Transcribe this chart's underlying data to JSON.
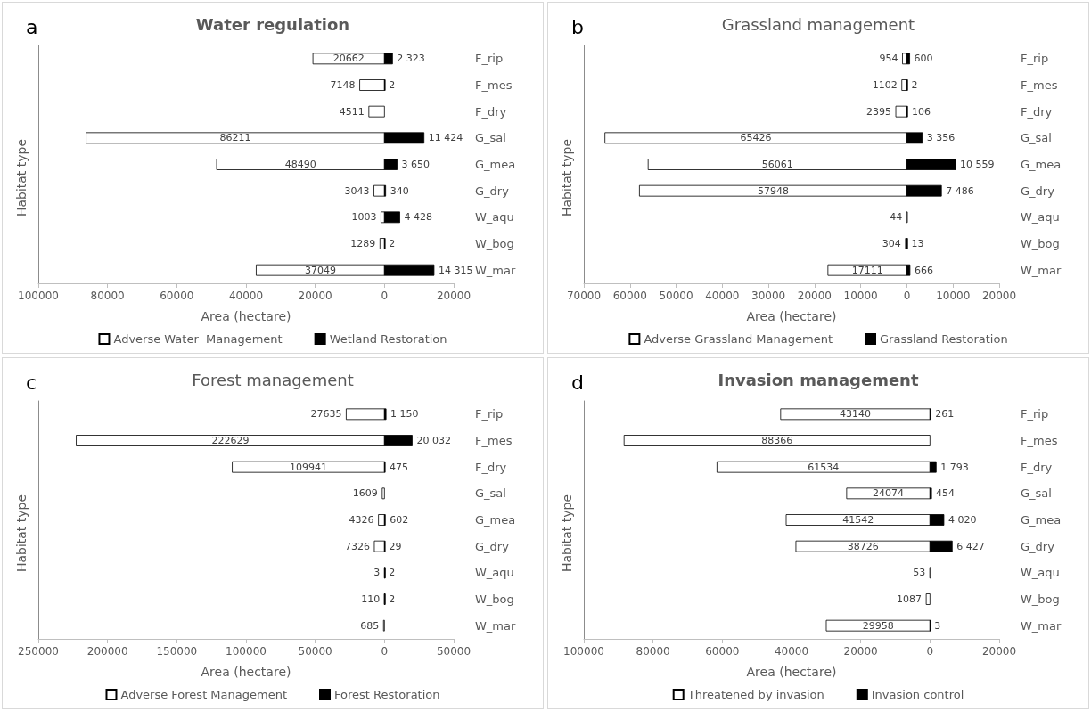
{
  "chart_data": [
    {
      "type": "bar",
      "orientation": "horizontal",
      "title": "Water regulation",
      "annotations": [
        "a"
      ],
      "xlabel": "Area (hectare)",
      "ylabel": "Habitat type",
      "legend": "bottom",
      "grid": false,
      "categories": [
        "F_rip",
        "F_mes",
        "F_dry",
        "G_sal",
        "G_mea",
        "G_dry",
        "W_aqu",
        "W_bog",
        "W_mar"
      ],
      "xlim": [
        -100000,
        20000
      ],
      "xticks": [
        {
          "value": -100000,
          "label": "100000"
        },
        {
          "value": -80000,
          "label": "80000"
        },
        {
          "value": -60000,
          "label": "60000"
        },
        {
          "value": -40000,
          "label": "40000"
        },
        {
          "value": -20000,
          "label": "20000"
        },
        0,
        20000
      ],
      "series": [
        {
          "name": "Adverse Water  Management",
          "color": "#ffffff",
          "values": [
            20662,
            7148,
            4511,
            86211,
            48490,
            3043,
            1003,
            1289,
            37049
          ],
          "base": [
            -20662,
            -7148,
            -4511,
            -86211,
            -48490,
            -3043,
            -1003,
            -1289,
            -37049
          ],
          "value_labels": [
            "20662",
            "7148",
            "4511",
            "86211",
            "48490",
            "3043",
            "1003",
            "1289",
            "37049"
          ]
        },
        {
          "name": "Wetland Restoration",
          "color": "#000000",
          "values": [
            2323,
            2,
            null,
            11424,
            3650,
            340,
            4428,
            2,
            14315
          ],
          "value_labels": [
            "2 323",
            "2",
            null,
            "11 424",
            "3 650",
            "340",
            "4 428",
            "2",
            "14 315"
          ]
        }
      ]
    },
    {
      "type": "bar",
      "orientation": "horizontal",
      "title": "Grassland management",
      "annotations": [
        "b"
      ],
      "xlabel": "Area (hectare)",
      "ylabel": "Habitat type",
      "legend": "bottom",
      "grid": false,
      "categories": [
        "F_rip",
        "F_mes",
        "F_dry",
        "G_sal",
        "G_mea",
        "G_dry",
        "W_aqu",
        "W_bog",
        "W_mar"
      ],
      "xlim": [
        -70000,
        20000
      ],
      "xticks": [
        {
          "value": -70000,
          "label": "70000"
        },
        {
          "value": -60000,
          "label": "60000"
        },
        {
          "value": -50000,
          "label": "50000"
        },
        {
          "value": -40000,
          "label": "40000"
        },
        {
          "value": -30000,
          "label": "30000"
        },
        {
          "value": -20000,
          "label": "20000"
        },
        {
          "value": -10000,
          "label": "10000"
        },
        0,
        10000,
        20000
      ],
      "series": [
        {
          "name": "Adverse Grassland Management",
          "color": "#ffffff",
          "values": [
            954,
            1102,
            2395,
            65426,
            56061,
            57948,
            44,
            304,
            17111
          ],
          "base": [
            -954,
            -1102,
            -2395,
            -65426,
            -56061,
            -57948,
            -44,
            -304,
            -17111
          ],
          "value_labels": [
            "954",
            "1102",
            "2395",
            "65426",
            "56061",
            "57948",
            "44",
            "304",
            "17111"
          ]
        },
        {
          "name": "Grassland Restoration",
          "color": "#000000",
          "values": [
            600,
            2,
            106,
            3356,
            10559,
            7486,
            null,
            13,
            666
          ],
          "value_labels": [
            "600",
            "2",
            "106",
            "3 356",
            "10 559",
            "7 486",
            null,
            "13",
            "666"
          ]
        }
      ]
    },
    {
      "type": "bar",
      "orientation": "horizontal",
      "title": "Forest management",
      "annotations": [
        "c"
      ],
      "xlabel": "Area (hectare)",
      "ylabel": "Habitat type",
      "legend": "bottom",
      "grid": false,
      "categories": [
        "F_rip",
        "F_mes",
        "F_dry",
        "G_sal",
        "G_mea",
        "G_dry",
        "W_aqu",
        "W_bog",
        "W_mar"
      ],
      "xlim": [
        -250000,
        50000
      ],
      "xticks": [
        {
          "value": -250000,
          "label": "250000"
        },
        {
          "value": -200000,
          "label": "200000"
        },
        {
          "value": -150000,
          "label": "150000"
        },
        {
          "value": -100000,
          "label": "100000"
        },
        {
          "value": -50000,
          "label": "50000"
        },
        0,
        50000
      ],
      "series": [
        {
          "name": "Adverse Forest Management",
          "color": "#ffffff",
          "values": [
            27635,
            222629,
            109941,
            1609,
            4326,
            7326,
            3,
            110,
            685
          ],
          "base": [
            -27635,
            -222629,
            -109941,
            -1609,
            -4326,
            -7326,
            -3,
            -110,
            -685
          ],
          "value_labels": [
            "27635",
            "222629",
            "109941",
            "1609",
            "4326",
            "7326",
            "3",
            "110",
            "685"
          ]
        },
        {
          "name": "Forest Restoration",
          "color": "#000000",
          "values": [
            1150,
            20032,
            475,
            null,
            602,
            29,
            2,
            2,
            null
          ],
          "value_labels": [
            "1 150",
            "20 032",
            "475",
            null,
            "602",
            "29",
            "2",
            "2",
            null
          ]
        }
      ]
    },
    {
      "type": "bar",
      "orientation": "horizontal",
      "title": "Invasion management",
      "annotations": [
        "d"
      ],
      "xlabel": "Area (hectare)",
      "ylabel": "Habitat type",
      "legend": "bottom",
      "grid": false,
      "categories": [
        "F_rip",
        "F_mes",
        "F_dry",
        "G_sal",
        "G_mea",
        "G_dry",
        "W_aqu",
        "W_bog",
        "W_mar"
      ],
      "xlim": [
        -100000,
        20000
      ],
      "xticks": [
        {
          "value": -100000,
          "label": "100000"
        },
        {
          "value": -80000,
          "label": "80000"
        },
        {
          "value": -60000,
          "label": "60000"
        },
        {
          "value": -40000,
          "label": "40000"
        },
        {
          "value": -20000,
          "label": "20000"
        },
        0,
        20000
      ],
      "series": [
        {
          "name": "Threatened by invasion",
          "color": "#ffffff",
          "values": [
            43140,
            88366,
            61534,
            24074,
            41542,
            38726,
            53,
            1087,
            29958
          ],
          "base": [
            -43140,
            -88366,
            -61534,
            -24074,
            -41542,
            -38726,
            -53,
            -1087,
            -29958
          ],
          "value_labels": [
            "43140",
            "88366",
            "61534",
            "24074",
            "41542",
            "38726",
            "53",
            "1087",
            "29958"
          ]
        },
        {
          "name": "Invasion control",
          "color": "#000000",
          "values": [
            261,
            null,
            1793,
            454,
            4020,
            6427,
            null,
            null,
            3
          ],
          "value_labels": [
            "261",
            null,
            "1 793",
            "454",
            "4 020",
            "6 427",
            null,
            null,
            "3"
          ]
        }
      ]
    }
  ]
}
